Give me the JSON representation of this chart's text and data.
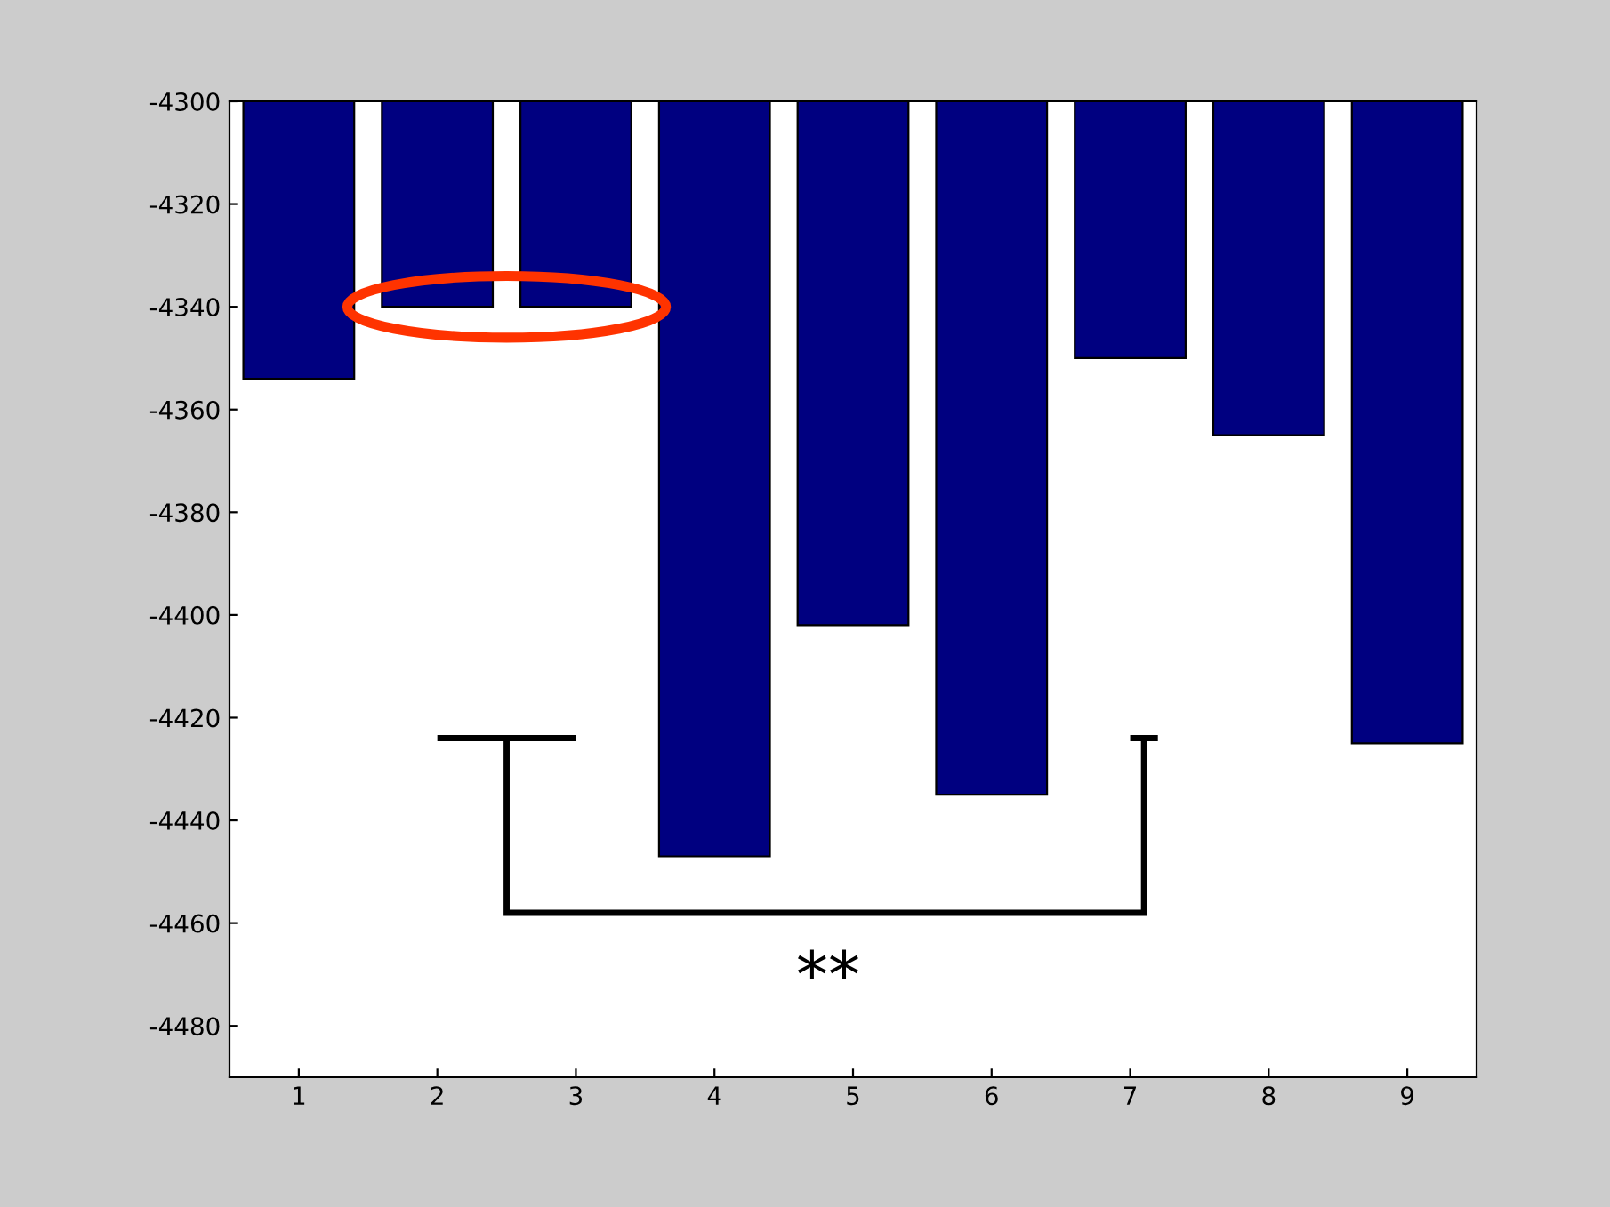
{
  "chart_data": {
    "type": "bar",
    "categories": [
      "1",
      "2",
      "3",
      "4",
      "5",
      "6",
      "7",
      "8",
      "9"
    ],
    "values": [
      -4354,
      -4340,
      -4340,
      -4447,
      -4402,
      -4435,
      -4350,
      -4365,
      -4425
    ],
    "color": "#000080",
    "ylim": [
      -4490,
      -4300
    ],
    "yticks": [
      -4480,
      -4460,
      -4440,
      -4420,
      -4400,
      -4380,
      -4360,
      -4340,
      -4320,
      -4300
    ],
    "grid": false,
    "annotations": [
      "**"
    ]
  }
}
